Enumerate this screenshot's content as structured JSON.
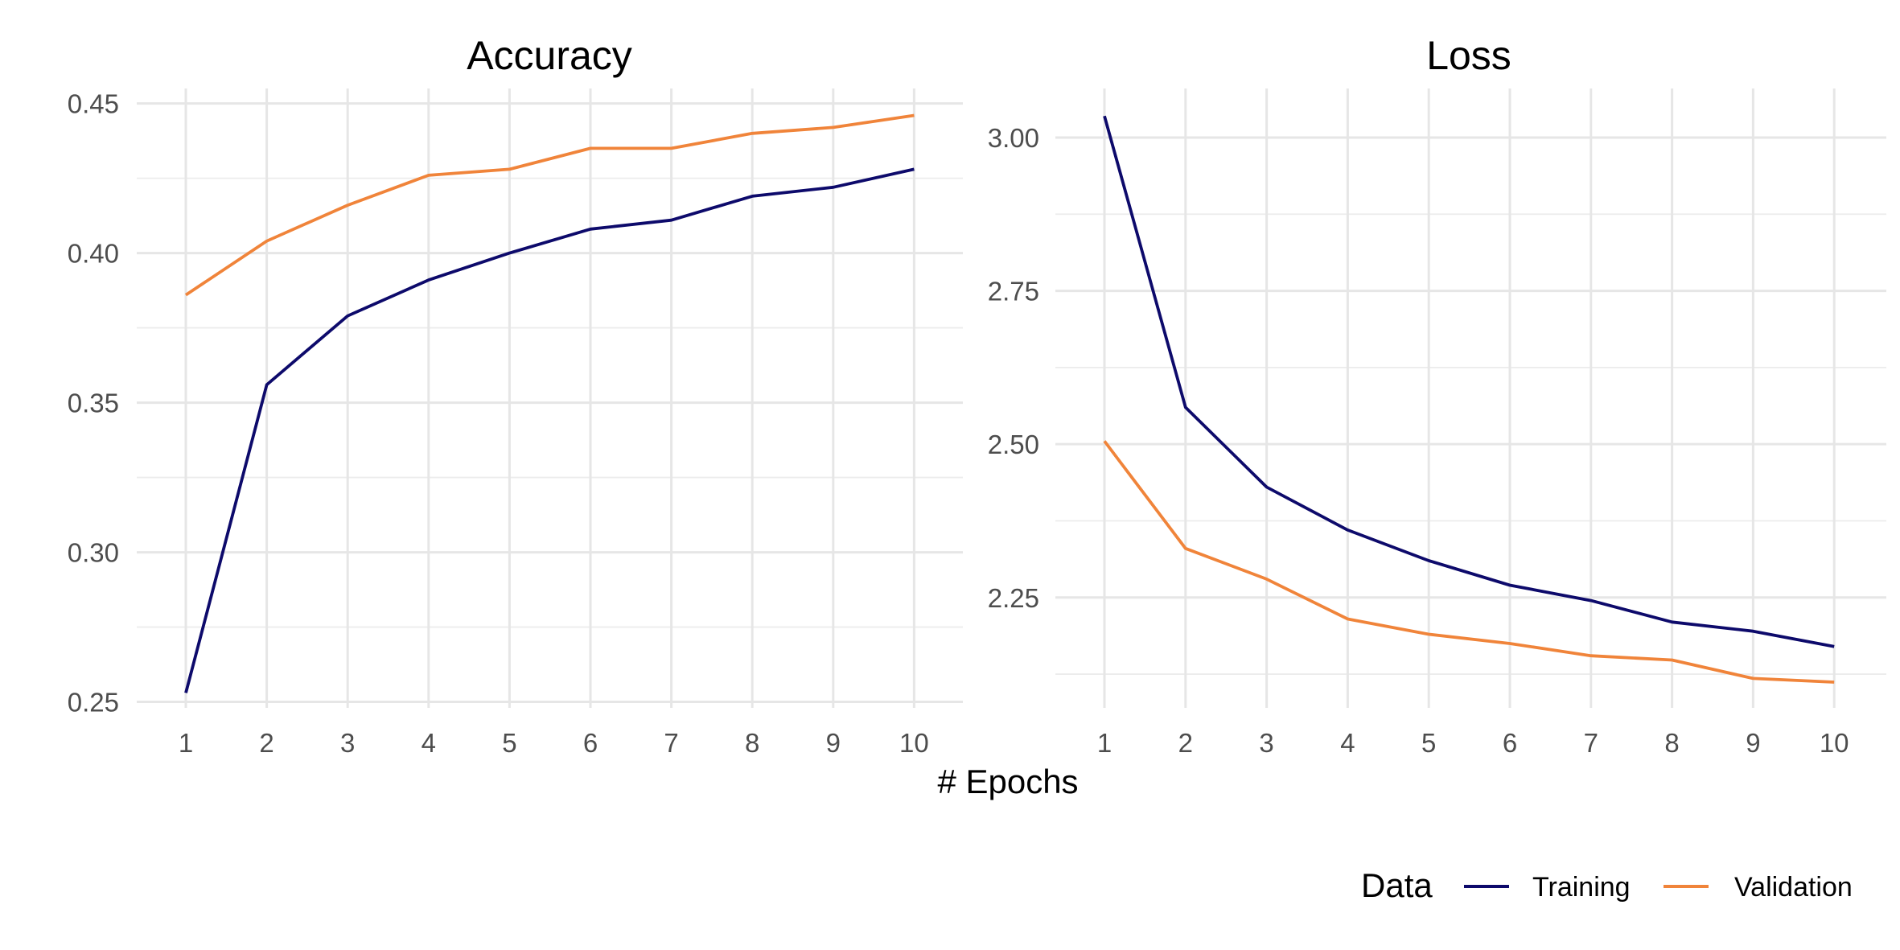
{
  "chart_data": [
    {
      "type": "line",
      "title": "Accuracy",
      "x": [
        1,
        2,
        3,
        4,
        5,
        6,
        7,
        8,
        9,
        10
      ],
      "xticks": [
        "1",
        "2",
        "3",
        "4",
        "5",
        "6",
        "7",
        "8",
        "9",
        "10"
      ],
      "ylim": [
        0.248,
        0.455
      ],
      "yticks": [
        "0.25",
        "0.30",
        "0.35",
        "0.40",
        "0.45"
      ],
      "ytick_values": [
        0.25,
        0.3,
        0.35,
        0.4,
        0.45
      ],
      "grid": true,
      "series": [
        {
          "name": "Training",
          "color": "#0d0a6b",
          "values": [
            0.253,
            0.356,
            0.379,
            0.391,
            0.4,
            0.408,
            0.411,
            0.419,
            0.422,
            0.428
          ]
        },
        {
          "name": "Validation",
          "color": "#f0843a",
          "values": [
            0.386,
            0.404,
            0.416,
            0.426,
            0.428,
            0.435,
            0.435,
            0.44,
            0.442,
            0.446
          ]
        }
      ]
    },
    {
      "type": "line",
      "title": "Loss",
      "x": [
        1,
        2,
        3,
        4,
        5,
        6,
        7,
        8,
        9,
        10
      ],
      "xticks": [
        "1",
        "2",
        "3",
        "4",
        "5",
        "6",
        "7",
        "8",
        "9",
        "10"
      ],
      "ylim": [
        2.07,
        3.08
      ],
      "yticks": [
        "2.25",
        "2.50",
        "2.75",
        "3.00"
      ],
      "ytick_values": [
        2.25,
        2.5,
        2.75,
        3.0
      ],
      "grid": true,
      "series": [
        {
          "name": "Training",
          "color": "#0d0a6b",
          "values": [
            3.035,
            2.56,
            2.43,
            2.36,
            2.31,
            2.27,
            2.245,
            2.21,
            2.195,
            2.17
          ]
        },
        {
          "name": "Validation",
          "color": "#f0843a",
          "values": [
            2.505,
            2.33,
            2.28,
            2.215,
            2.19,
            2.175,
            2.155,
            2.148,
            2.118,
            2.112
          ]
        }
      ]
    }
  ],
  "shared": {
    "xlabel": "# Epochs",
    "legend": {
      "title": "Data",
      "position": "bottom-right",
      "entries": [
        {
          "label": "Training",
          "color": "#0d0a6b"
        },
        {
          "label": "Validation",
          "color": "#f0843a"
        }
      ]
    }
  }
}
